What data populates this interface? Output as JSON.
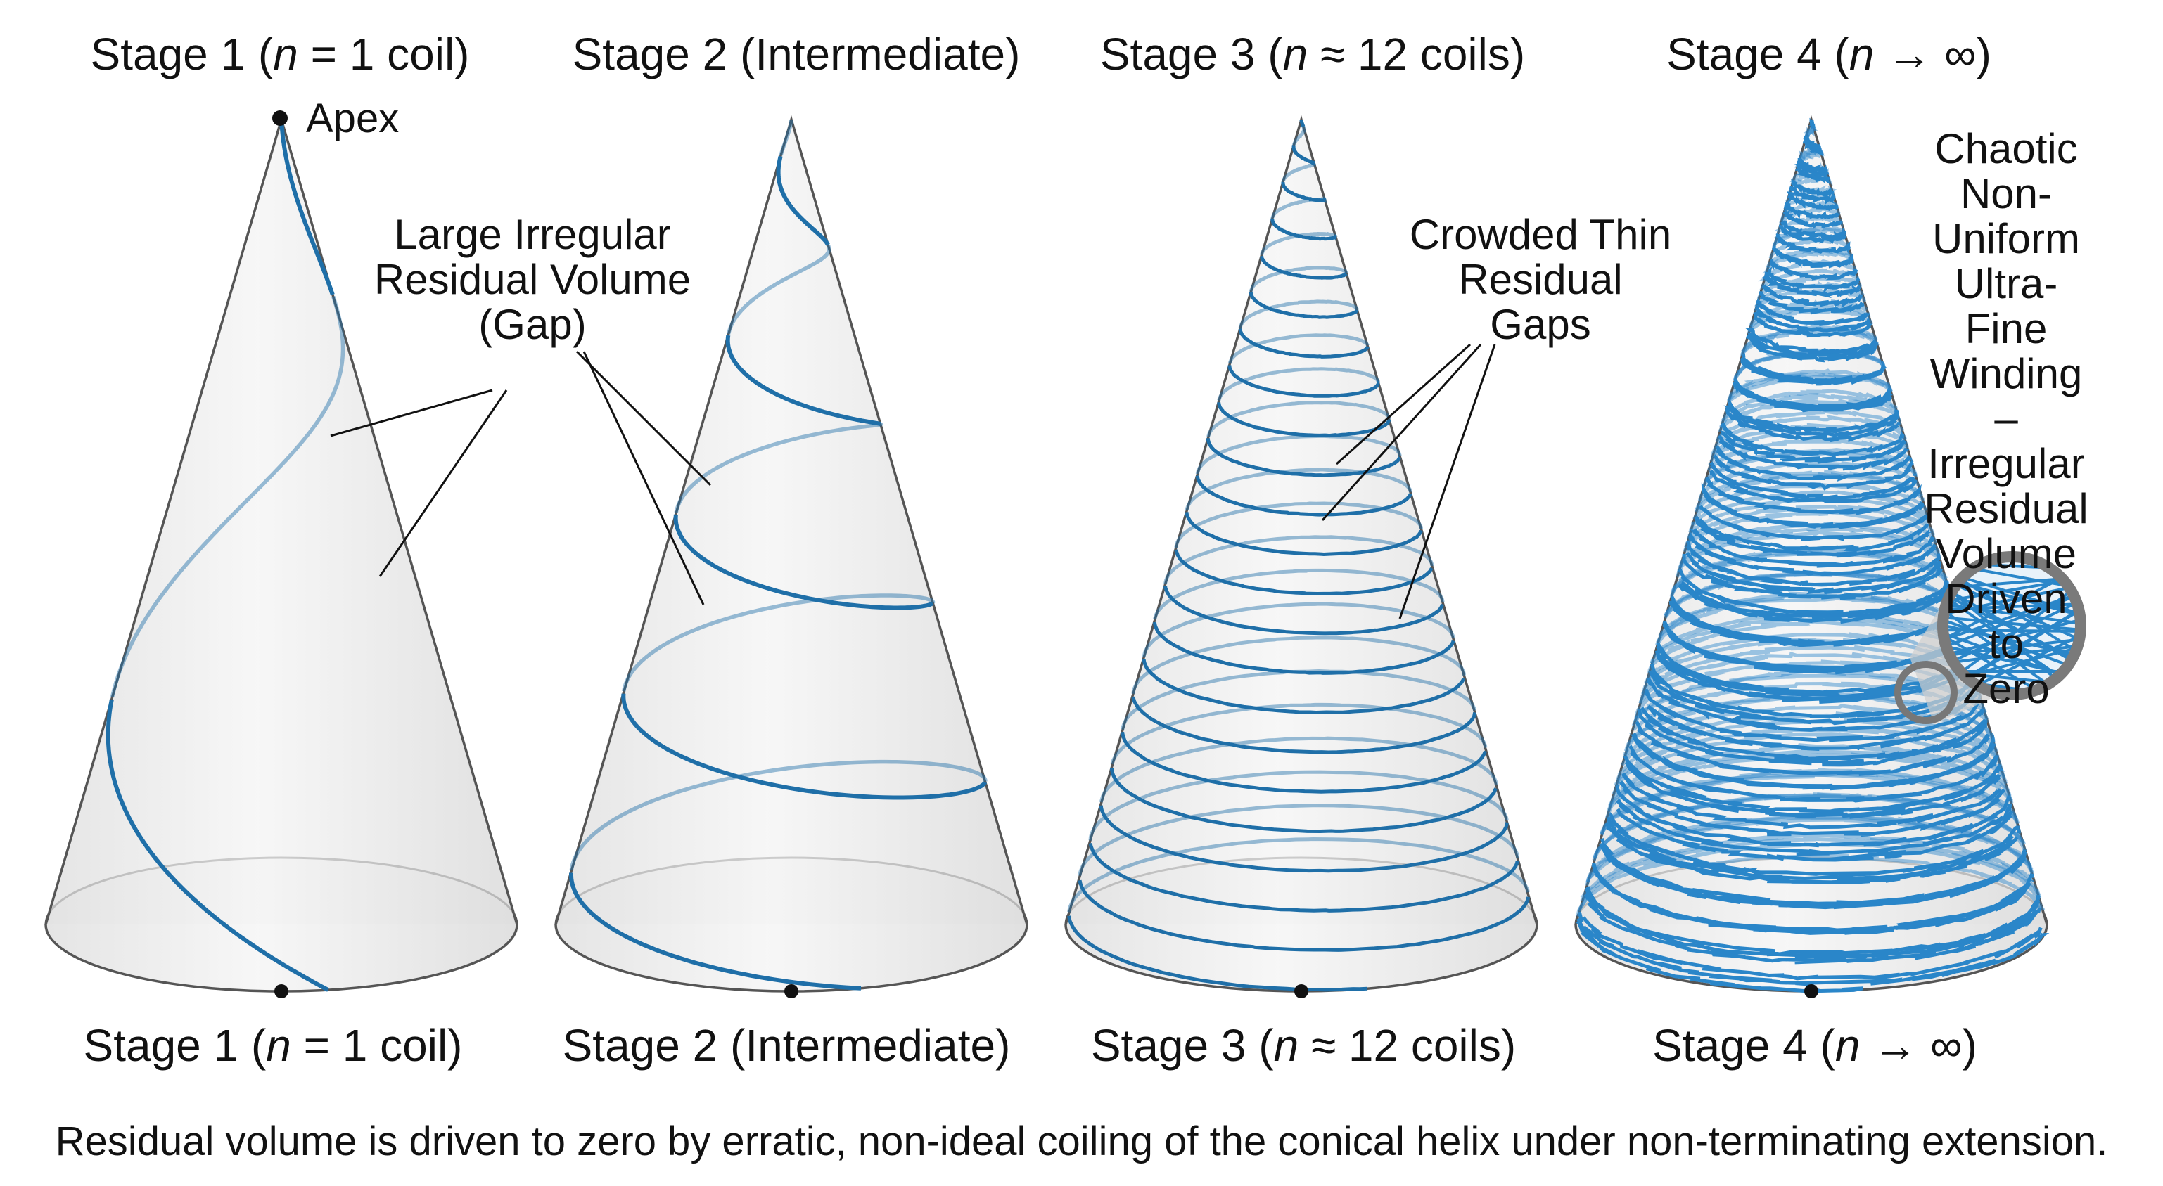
{
  "stages": [
    {
      "title_prefix": "Stage 1 (",
      "title_var": "n",
      "title_suffix": " = 1 coil)"
    },
    {
      "title_prefix": "Stage 2 (Intermediate)",
      "title_var": "",
      "title_suffix": ""
    },
    {
      "title_prefix": "Stage 3 (",
      "title_var": "n",
      "title_suffix": " ≈ 12 coils)"
    },
    {
      "title_prefix": "Stage 4 (",
      "title_var": "n",
      "title_suffix": " → ∞)"
    }
  ],
  "annotations": {
    "apex": "Apex",
    "large_gap": [
      "Large Irregular",
      "Residual Volume",
      "(Gap)"
    ],
    "thin_gaps": [
      "Crowded Thin",
      "Residual",
      "Gaps"
    ],
    "chaotic": [
      "Chaotic Non-",
      "Uniform",
      "Ultra-Fine",
      "Winding –",
      "Irregular",
      "Residual",
      "Volume",
      "Driven to",
      "Zero"
    ]
  },
  "caption": "Residual volume is driven to zero by erratic, non-ideal coiling of the conical helix under non-terminating extension.",
  "colors": {
    "helix": "#1f6fa8",
    "helix_dense": "#2a86c9",
    "cone_fill": "#ececec",
    "cone_stroke": "#555555"
  }
}
